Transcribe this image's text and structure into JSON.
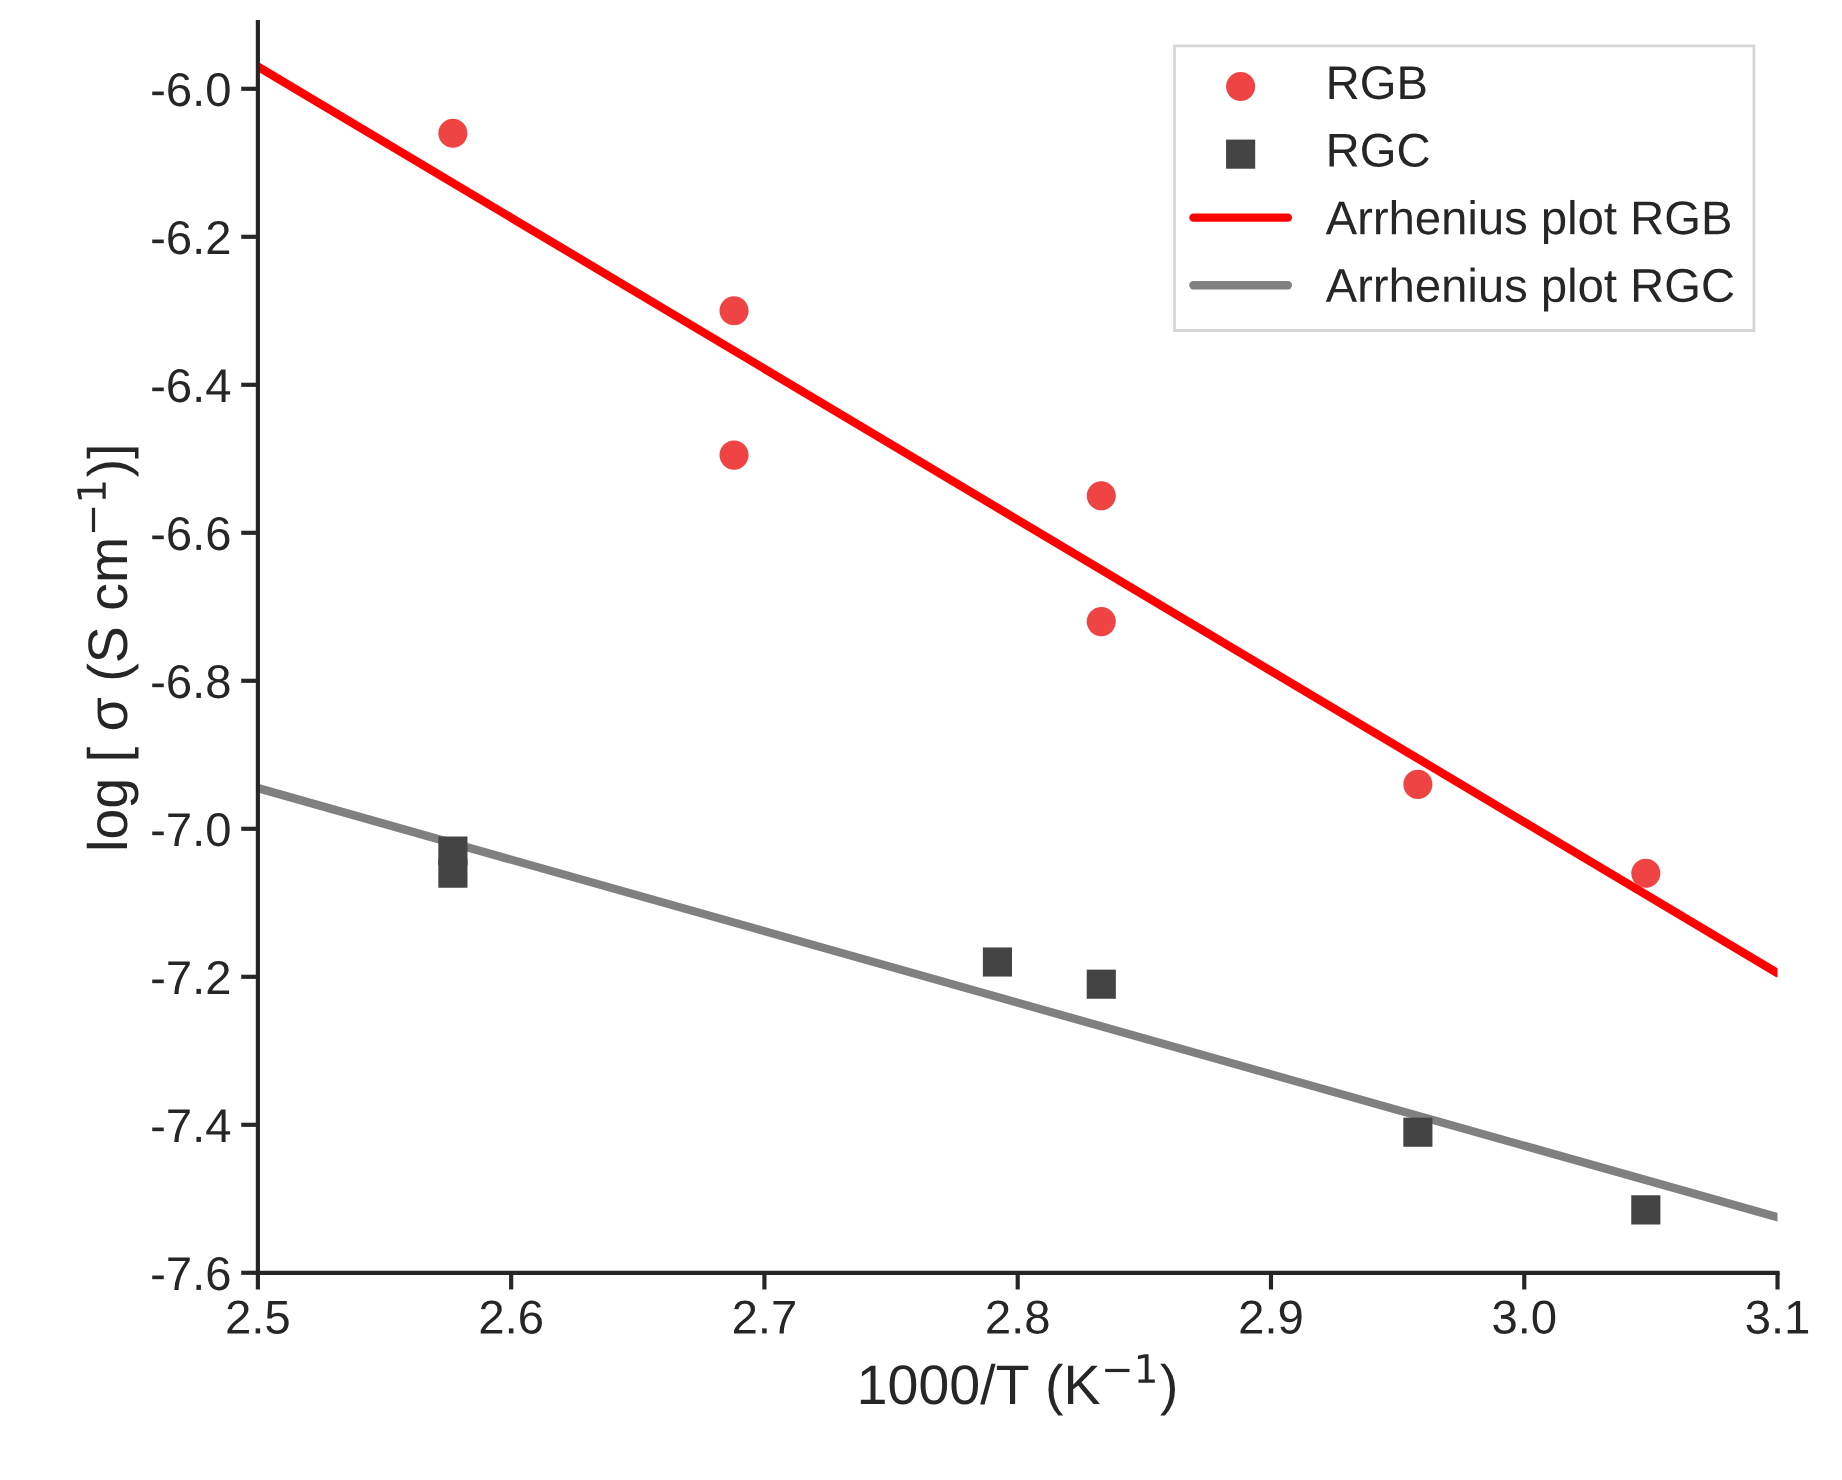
{
  "chart_data": {
    "type": "scatter",
    "xlabel": "1000/T (K$^{−1}$)",
    "ylabel": "log [ σ (S cm$^{−1}$)]",
    "xlim": [
      2.5,
      3.1
    ],
    "ylim": [
      -7.6,
      -5.91
    ],
    "xticks": [
      2.5,
      2.6,
      2.7,
      2.8,
      2.9,
      {
        "value": 3,
        "label": "3.0"
      },
      3.1
    ],
    "yticks": [
      -7.6,
      -7.4,
      -7.2,
      {
        "value": -7,
        "label": "-7.0"
      },
      -6.8,
      -6.6,
      -6.4,
      -6.2,
      {
        "value": -6,
        "label": "-6.0"
      }
    ],
    "grid": false,
    "legend": "top right",
    "series": [
      {
        "name": "RGB",
        "marker": "circle",
        "color": "#f04444",
        "x": [
          2.577,
          2.688,
          2.688,
          2.833,
          2.833,
          2.958,
          3.048
        ],
        "values": [
          -6.06,
          -6.3,
          -6.495,
          -6.55,
          -6.72,
          -6.94,
          -7.06
        ]
      },
      {
        "name": "RGC",
        "marker": "square",
        "color": "#444444",
        "x": [
          2.577,
          2.577,
          2.792,
          2.833,
          2.958,
          3.048
        ],
        "values": [
          -7.03,
          -7.06,
          -7.18,
          -7.21,
          -7.41,
          -7.515
        ]
      },
      {
        "name": "Arrhenius plot RGB",
        "type": "line",
        "line_style": "solid",
        "color": "#ff0000",
        "x": [
          2.5,
          3.1
        ],
        "values": [
          -5.97,
          -7.195
        ]
      },
      {
        "name": "Arrhenius plot RGC",
        "type": "line",
        "line_style": "solid",
        "color": "#808080",
        "x": [
          2.5,
          3.1
        ],
        "values": [
          -6.945,
          -7.525
        ]
      }
    ]
  }
}
